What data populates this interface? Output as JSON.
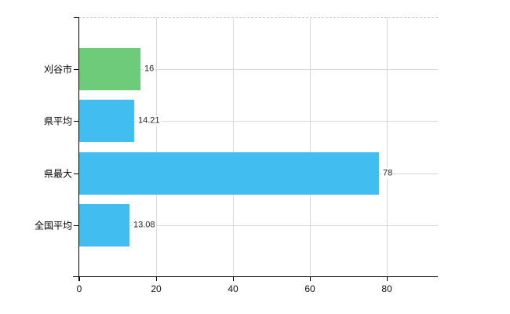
{
  "chart_data": {
    "type": "bar",
    "orientation": "horizontal",
    "categories": [
      "刈谷市",
      "県平均",
      "県最大",
      "全国平均"
    ],
    "values": [
      16,
      14.21,
      78,
      13.08
    ],
    "value_labels": [
      "16",
      "14.21",
      "78",
      "13.08"
    ],
    "bar_colors": [
      "#6ecb7a",
      "#41bdf0",
      "#41bdf0",
      "#41bdf0"
    ],
    "x_ticks": [
      0,
      20,
      40,
      60,
      80
    ],
    "x_tick_labels": [
      "0",
      "20",
      "40",
      "60",
      "80"
    ],
    "xlim": [
      0,
      93
    ],
    "grid": true,
    "legend": false,
    "colors": {
      "background": "#ffffff",
      "axis": "#000000",
      "grid": "#d9d9d9",
      "plot_top_border": "#c8c8c8",
      "category_text": "#000000",
      "value_text": "#222222",
      "tick_text": "#111111"
    }
  }
}
